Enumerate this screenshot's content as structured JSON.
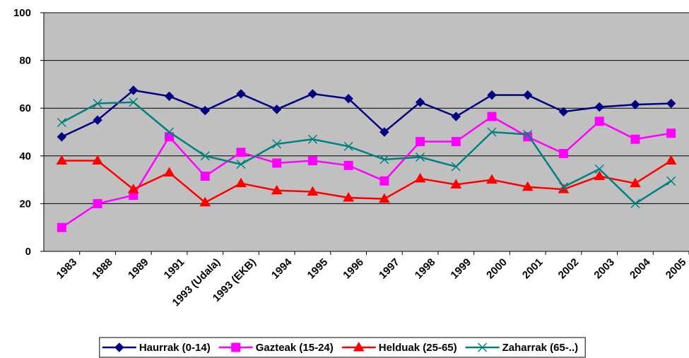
{
  "chart_data": {
    "type": "line",
    "categories": [
      "1983",
      "1988",
      "1989",
      "1991",
      "1993 (Udala)",
      "1993 (EKB)",
      "1994",
      "1995",
      "1996",
      "1997",
      "1998",
      "1999",
      "2000",
      "2001",
      "2002",
      "2003",
      "2004",
      "2005"
    ],
    "series": [
      {
        "name": "Haurrak (0-14)",
        "color": "#000080",
        "marker": "diamond",
        "values": [
          48,
          55,
          67.5,
          65,
          59,
          66,
          59.5,
          66,
          64,
          50,
          62.5,
          56.5,
          65.5,
          65.5,
          58.5,
          60.5,
          61.5,
          62
        ]
      },
      {
        "name": "Gazteak (15-24)",
        "color": "#ff00ff",
        "marker": "square",
        "values": [
          10,
          20,
          23.5,
          48,
          31.5,
          41.5,
          37,
          38,
          36,
          29.5,
          46,
          46,
          56.5,
          48,
          41,
          54.5,
          47,
          49.5
        ]
      },
      {
        "name": "Helduak (25-65)",
        "color": "#ff0000",
        "marker": "triangle",
        "values": [
          38,
          38,
          26,
          33,
          20.5,
          28.5,
          25.5,
          25,
          22.5,
          22,
          30.5,
          28,
          30,
          27,
          26,
          31.5,
          28.5,
          38
        ]
      },
      {
        "name": "Zaharrak (65-..)",
        "color": "#008080",
        "marker": "x",
        "values": [
          54,
          62,
          62.5,
          50,
          40,
          36.5,
          45,
          47,
          44,
          38.5,
          39.5,
          35.5,
          50,
          49,
          27,
          34.5,
          20,
          29.5
        ]
      }
    ],
    "ylim": [
      0,
      100
    ],
    "yticks": [
      0,
      20,
      40,
      60,
      80,
      100
    ],
    "grid": true,
    "legend": "bottom"
  }
}
